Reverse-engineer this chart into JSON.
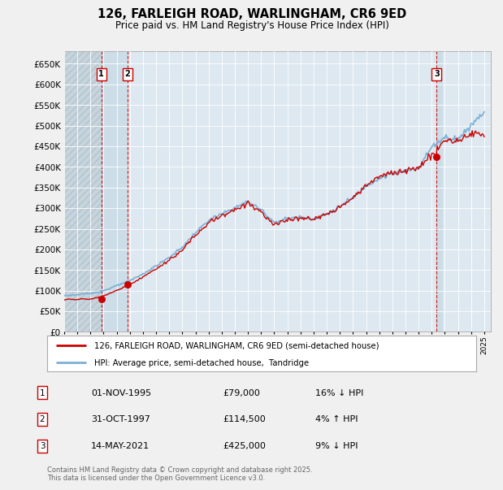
{
  "title": "126, FARLEIGH ROAD, WARLINGHAM, CR6 9ED",
  "subtitle": "Price paid vs. HM Land Registry's House Price Index (HPI)",
  "ytick_values": [
    0,
    50000,
    100000,
    150000,
    200000,
    250000,
    300000,
    350000,
    400000,
    450000,
    500000,
    550000,
    600000,
    650000
  ],
  "ylim": [
    0,
    680000
  ],
  "xlim_start": 1993.0,
  "xlim_end": 2025.5,
  "legend_line1": "126, FARLEIGH ROAD, WARLINGHAM, CR6 9ED (semi-detached house)",
  "legend_line2": "HPI: Average price, semi-detached house,  Tandridge",
  "sale_color": "#cc0000",
  "hpi_color": "#7ab0d4",
  "hpi_fill_color": "#d0e4f0",
  "annotations": [
    {
      "n": 1,
      "date": "01-NOV-1995",
      "price": "£79,000",
      "pct": "16%",
      "dir": "↓",
      "year": 1995.83
    },
    {
      "n": 2,
      "date": "31-OCT-1997",
      "price": "£114,500",
      "pct": "4%",
      "dir": "↑",
      "year": 1997.83
    },
    {
      "n": 3,
      "date": "14-MAY-2021",
      "price": "£425,000",
      "pct": "9%",
      "dir": "↓",
      "year": 2021.37
    }
  ],
  "footer": "Contains HM Land Registry data © Crown copyright and database right 2025.\nThis data is licensed under the Open Government Licence v3.0.",
  "bg_color": "#f0f0f0",
  "plot_bg": "#dde8f0",
  "grid_color": "#ffffff",
  "hatch_color": "#c8d8e8"
}
